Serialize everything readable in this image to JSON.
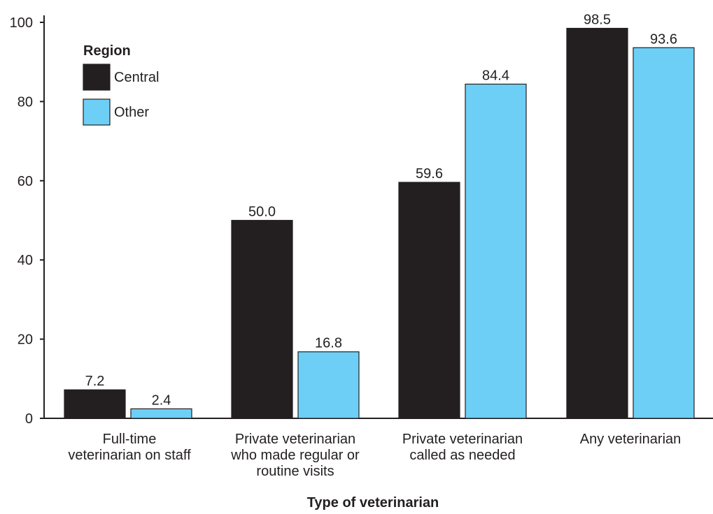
{
  "chart_data": {
    "type": "bar",
    "title": "",
    "xlabel": "Type of veterinarian",
    "ylabel": "",
    "ylim": [
      0,
      100
    ],
    "yticks": [
      "0",
      "20",
      "40",
      "60",
      "80",
      "100"
    ],
    "categories": [
      [
        "Full-time",
        "veterinarian on staff"
      ],
      [
        "Private veterinarian",
        "who made regular or",
        "routine visits"
      ],
      [
        "Private veterinarian",
        "called as needed"
      ],
      [
        "Any veterinarian"
      ]
    ],
    "series": [
      {
        "name": "Central",
        "color": "#231f20",
        "values": [
          7.2,
          50.0,
          59.6,
          98.5
        ],
        "labels": [
          "7.2",
          "50.0",
          "59.6",
          "98.5"
        ]
      },
      {
        "name": "Other",
        "color": "#6dcff6",
        "values": [
          2.4,
          16.8,
          84.4,
          93.6
        ],
        "labels": [
          "2.4",
          "16.8",
          "84.4",
          "93.6"
        ]
      }
    ],
    "legend": {
      "title": "Region",
      "position": "top-left"
    },
    "grid": false
  }
}
